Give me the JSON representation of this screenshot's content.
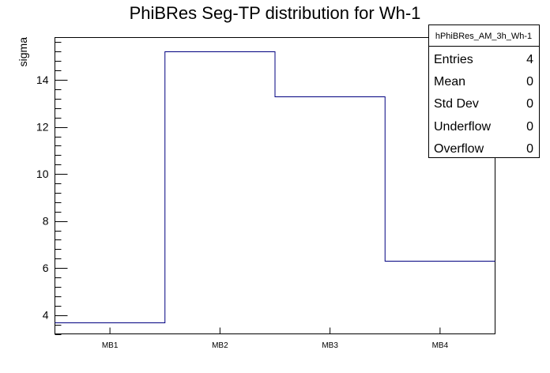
{
  "chart_data": {
    "type": "bar",
    "title": "PhiBRes Seg-TP distribution for Wh-1",
    "xlabel": "",
    "ylabel": "sigma",
    "categories": [
      "MB1",
      "MB2",
      "MB3",
      "MB4"
    ],
    "values": [
      3.7,
      15.2,
      13.3,
      6.3
    ],
    "ylim": [
      3.2,
      15.8
    ],
    "yticks": [
      4,
      6,
      8,
      10,
      12,
      14
    ],
    "grid": false,
    "series_color": "#000080",
    "stats": {
      "name": "hPhiBRes_AM_3h_Wh-1",
      "rows": [
        {
          "label": "Entries",
          "value": "4"
        },
        {
          "label": "Mean",
          "value": "0"
        },
        {
          "label": "Std Dev",
          "value": "0"
        },
        {
          "label": "Underflow",
          "value": "0"
        },
        {
          "label": "Overflow",
          "value": "0"
        }
      ]
    }
  }
}
